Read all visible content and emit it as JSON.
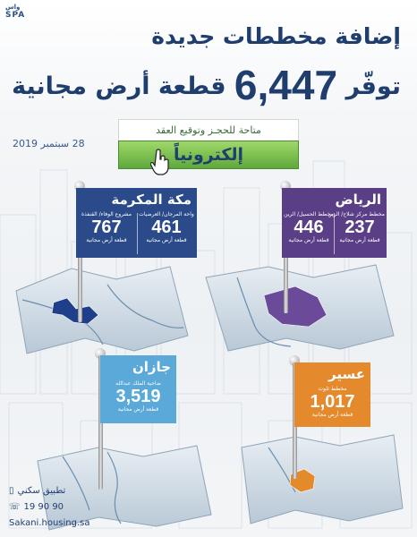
{
  "agency_logo": "SPA",
  "header": {
    "title_line1": "إضافة مخططات جديدة",
    "title_line2_prefix": "توفّر",
    "title_line2_number": "6,447",
    "title_line2_suffix": "قطعة أرض مجانية"
  },
  "date": "28 سبتمبر 2019",
  "cta": {
    "top_text": "متاحة للحجـز وتوقيع العقد",
    "button_label": "إلكترونياً"
  },
  "regions": [
    {
      "name": "مكة المكرمة",
      "color": "#2a4a8a",
      "stats": [
        {
          "label": "مشروع الوفاء/ القنفذة",
          "value": "767",
          "unit": "قطعة أرض مجانية"
        },
        {
          "label": "واحة المرجان/ العرضيات",
          "value": "461",
          "unit": "قطعة أرض مجانية"
        }
      ]
    },
    {
      "name": "الرياض",
      "color": "#5a3e86",
      "stats": [
        {
          "label": "مخطط مركز شلاح/ الرين",
          "value": "237",
          "unit": "قطعة أرض مجانية"
        },
        {
          "label": "مخطط الحسيل/ الرين",
          "value": "446",
          "unit": "قطعة أرض مجانية"
        }
      ]
    },
    {
      "name": "جازان",
      "color": "#5aa9d8",
      "stats": [
        {
          "label": "ضاحية الملك عبدالله",
          "value": "3,519",
          "unit": "قطعة أرض مجانية"
        }
      ]
    },
    {
      "name": "عسير",
      "color": "#e58a2c",
      "stats": [
        {
          "label": "مخطط ثلوث",
          "value": "1,017",
          "unit": "قطعة أرض مجانية"
        }
      ]
    }
  ],
  "footer": {
    "app_label": "تطبيق سكني",
    "phone": "19 90 90",
    "website": "Sakani.housing.sa"
  }
}
